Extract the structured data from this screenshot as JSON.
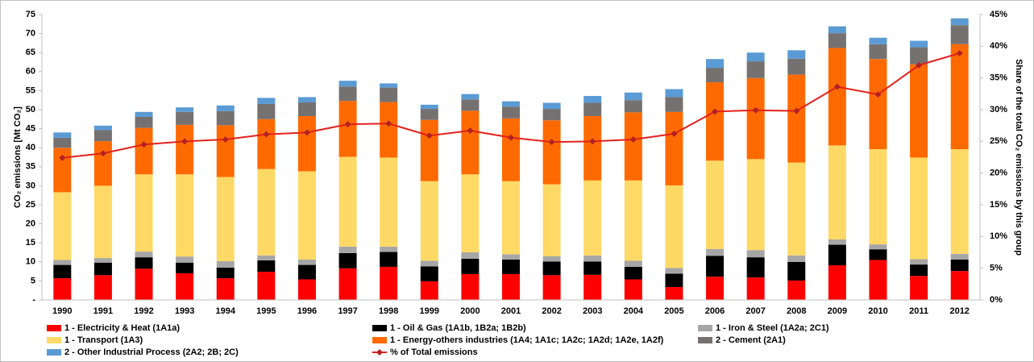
{
  "chart_data": {
    "type": "bar",
    "stacked": true,
    "ylabel": "CO₂ emissions [Mt CO₂]",
    "y2label": "Share of the total CO₂ emissions by this group",
    "categories": [
      "1990",
      "1991",
      "1992",
      "1993",
      "1994",
      "1995",
      "1996",
      "1997",
      "1998",
      "1999",
      "2000",
      "2001",
      "2002",
      "2003",
      "2004",
      "2005",
      "2006",
      "2007",
      "2008",
      "2009",
      "2010",
      "2011",
      "2012"
    ],
    "ylim": [
      0,
      75
    ],
    "yticks": [
      {
        "value": 0,
        "label": "-"
      },
      5,
      10,
      15,
      20,
      25,
      30,
      35,
      40,
      45,
      50,
      55,
      60,
      65,
      70,
      75
    ],
    "y2lim": [
      0,
      45
    ],
    "y2ticks": [
      {
        "value": 0,
        "label": "0%"
      },
      {
        "value": 5,
        "label": "5%"
      },
      {
        "value": 10,
        "label": "10%"
      },
      {
        "value": 15,
        "label": "15%"
      },
      {
        "value": 20,
        "label": "20%"
      },
      {
        "value": 25,
        "label": "25%"
      },
      {
        "value": 30,
        "label": "30%"
      },
      {
        "value": 35,
        "label": "35%"
      },
      {
        "value": 40,
        "label": "40%"
      },
      {
        "value": 45,
        "label": "45%"
      }
    ],
    "grid": false,
    "series": [
      {
        "name": "1 - Electricity & Heat (1A1a)",
        "color": "#ff0000",
        "values": [
          5.7,
          6.5,
          8.2,
          7.0,
          5.7,
          7.4,
          5.4,
          8.3,
          8.7,
          4.9,
          6.8,
          6.8,
          6.5,
          6.6,
          5.4,
          3.4,
          6.1,
          5.9,
          5.1,
          9.1,
          10.5,
          6.3,
          7.6
        ]
      },
      {
        "name": "1 - Oil & Gas (1A1b, 1B2a; 1B2b)",
        "color": "#000000",
        "values": [
          3.5,
          3.3,
          3.0,
          2.8,
          2.8,
          3.0,
          3.8,
          4.0,
          3.9,
          3.9,
          4.0,
          3.8,
          3.6,
          3.5,
          3.3,
          3.5,
          5.5,
          5.3,
          4.9,
          5.4,
          2.8,
          3.0,
          3.0
        ]
      },
      {
        "name": "1 - Iron & Steel (1A2a; 2C1)",
        "color": "#a6a6a6",
        "values": [
          1.3,
          1.2,
          1.5,
          1.6,
          1.7,
          1.3,
          1.4,
          1.7,
          1.4,
          1.5,
          1.7,
          1.4,
          1.4,
          1.6,
          1.6,
          1.5,
          1.8,
          1.9,
          1.7,
          1.4,
          1.3,
          1.4,
          1.5
        ]
      },
      {
        "name": "1 - Transport (1A3)",
        "color": "#ffd966",
        "values": [
          17.8,
          19.0,
          20.3,
          21.6,
          22.1,
          22.7,
          23.2,
          23.6,
          23.4,
          20.9,
          20.5,
          19.2,
          18.9,
          19.7,
          21.1,
          21.7,
          23.2,
          23.9,
          24.4,
          24.7,
          25.0,
          26.7,
          27.5
        ]
      },
      {
        "name": "1 - Energy-others industries (1A4; 1A1c; 1A2c; 1A2d; 1A2e, 1A2f)",
        "color": "#ff6a00",
        "values": [
          11.7,
          11.7,
          12.2,
          13.0,
          13.6,
          13.1,
          14.5,
          14.7,
          14.6,
          16.1,
          16.7,
          16.5,
          16.8,
          16.9,
          17.9,
          19.3,
          20.6,
          21.3,
          23.1,
          25.6,
          23.7,
          24.5,
          27.6
        ]
      },
      {
        "name": "2 - Cement (2A1)",
        "color": "#767171",
        "values": [
          2.6,
          2.9,
          2.9,
          3.4,
          3.7,
          4.0,
          3.6,
          3.8,
          3.8,
          2.9,
          3.0,
          3.1,
          3.0,
          3.5,
          3.2,
          3.9,
          3.8,
          4.4,
          4.2,
          3.9,
          3.9,
          4.5,
          5.0
        ]
      },
      {
        "name": "2 - Other Industrial Process (2A2; 2B; 2C)",
        "color": "#5b9bd5",
        "values": [
          1.4,
          1.2,
          1.3,
          1.2,
          1.5,
          1.6,
          1.4,
          1.5,
          1.1,
          1.1,
          1.4,
          1.4,
          1.6,
          1.8,
          2.0,
          2.1,
          2.3,
          2.3,
          2.2,
          1.8,
          1.7,
          1.7,
          1.8
        ]
      },
      {
        "name": "% of Total emissions",
        "type": "line",
        "axis": "y2",
        "color": "#e3211c",
        "marker_color": "#b22222",
        "values": [
          22.4,
          23.1,
          24.5,
          25.0,
          25.3,
          26.1,
          26.4,
          27.7,
          27.8,
          25.9,
          26.7,
          25.6,
          24.9,
          25.0,
          25.3,
          26.2,
          29.7,
          29.9,
          29.8,
          33.6,
          32.4,
          37.0,
          38.9
        ]
      }
    ]
  }
}
